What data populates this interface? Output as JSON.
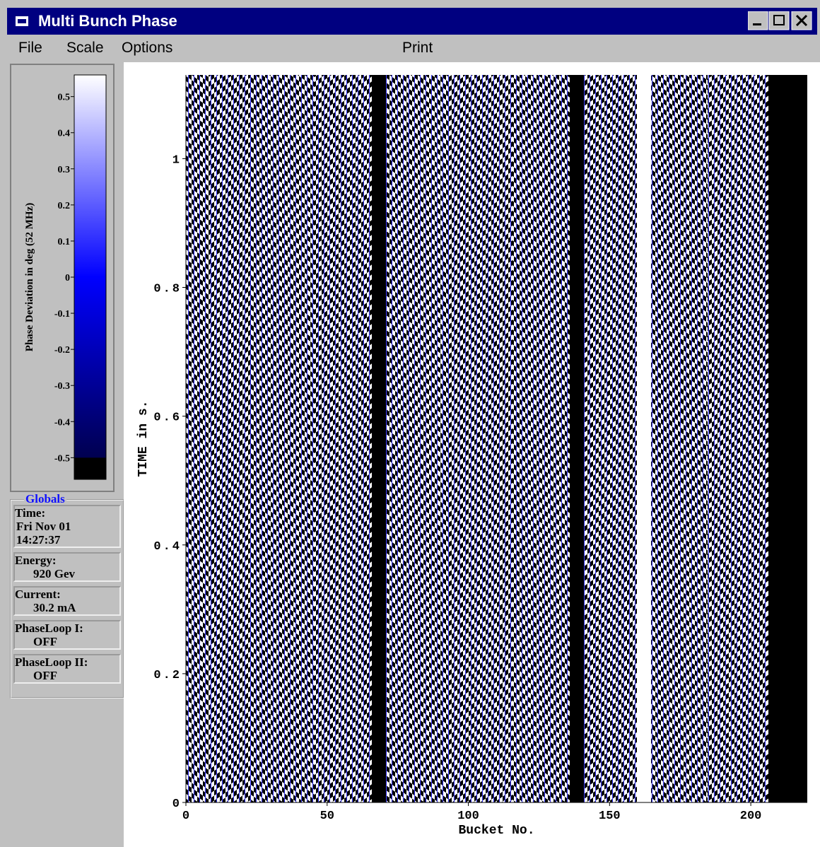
{
  "window": {
    "title": "Multi Bunch Phase"
  },
  "menu": [
    "File",
    "Scale",
    "Options",
    "Print"
  ],
  "colorbar": {
    "label": "Phase Deviation in deg (52 MHz)",
    "lim": [
      -0.56,
      0.56
    ],
    "ticks": [
      0.5,
      0.4,
      0.3,
      0.2,
      0.1,
      0,
      -0.1,
      -0.2,
      -0.3,
      -0.4,
      -0.5
    ],
    "colors": [
      "#000000",
      "#000050",
      "#0000ff",
      "#ffffff"
    ]
  },
  "globals": {
    "title": "Globals",
    "items": [
      {
        "label": "Time:",
        "lines": [
          "Fri Nov 01",
          "14:27:37"
        ]
      },
      {
        "label": "Energy:",
        "lines": [
          "920 Gev"
        ]
      },
      {
        "label": "Current:",
        "lines": [
          "30.2 mA"
        ]
      },
      {
        "label": "PhaseLoop I:",
        "lines": [
          "OFF"
        ]
      },
      {
        "label": "PhaseLoop II:",
        "lines": [
          "OFF"
        ]
      }
    ]
  },
  "chart_data": {
    "type": "heatmap",
    "xlabel": "Bucket No.",
    "ylabel": "TIME in s.",
    "xlim": [
      0,
      220
    ],
    "ylim": [
      0,
      1.13
    ],
    "xticks": [
      0,
      50,
      100,
      150,
      200
    ],
    "yticks": [
      0,
      0.2,
      0.4,
      0.6,
      0.8,
      1
    ]
  }
}
